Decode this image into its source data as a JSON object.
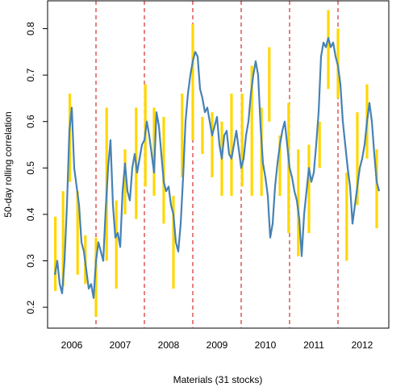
{
  "chart_data": {
    "type": "line",
    "title": "",
    "xlabel": "Materials (31 stocks)",
    "ylabel": "50-day rolling correlation",
    "xlim": [
      2005.5,
      2012.55
    ],
    "ylim": [
      0.155,
      0.86
    ],
    "yticks": [
      0.2,
      0.3,
      0.4,
      0.5,
      0.6,
      0.7,
      0.8
    ],
    "year_labels": [
      {
        "label": "2006",
        "x": 2006.0
      },
      {
        "label": "2007",
        "x": 2007.0
      },
      {
        "label": "2008",
        "x": 2008.0
      },
      {
        "label": "2009",
        "x": 2009.0
      },
      {
        "label": "2010",
        "x": 2010.0
      },
      {
        "label": "2011",
        "x": 2011.0
      },
      {
        "label": "2012",
        "x": 2012.0
      }
    ],
    "year_boundaries": [
      2006.5,
      2007.5,
      2008.5,
      2009.5,
      2010.5,
      2011.5
    ],
    "colors": {
      "line": "#4682b4",
      "segments": "#ffd700",
      "boundaries": "#cc0000"
    },
    "series": [
      {
        "x": [
          2005.65,
          2005.7,
          2005.75,
          2005.8,
          2005.85,
          2005.9,
          2005.95,
          2006.0,
          2006.05,
          2006.1,
          2006.15,
          2006.2,
          2006.25,
          2006.3,
          2006.35,
          2006.4,
          2006.45,
          2006.5,
          2006.55,
          2006.6,
          2006.65,
          2006.7,
          2006.75,
          2006.8,
          2006.85,
          2006.9,
          2006.95,
          2007.0,
          2007.05,
          2007.1,
          2007.15,
          2007.2,
          2007.25,
          2007.3,
          2007.35,
          2007.4,
          2007.45,
          2007.5,
          2007.55,
          2007.6,
          2007.65,
          2007.7,
          2007.75,
          2007.8,
          2007.85,
          2007.9,
          2007.95,
          2008.0,
          2008.05,
          2008.1,
          2008.15,
          2008.2,
          2008.25,
          2008.3,
          2008.35,
          2008.4,
          2008.45,
          2008.5,
          2008.55,
          2008.6,
          2008.65,
          2008.7,
          2008.75,
          2008.8,
          2008.85,
          2008.9,
          2008.95,
          2009.0,
          2009.05,
          2009.1,
          2009.15,
          2009.2,
          2009.25,
          2009.3,
          2009.35,
          2009.4,
          2009.45,
          2009.5,
          2009.55,
          2009.6,
          2009.65,
          2009.7,
          2009.75,
          2009.8,
          2009.85,
          2009.9,
          2009.95,
          2010.0,
          2010.05,
          2010.1,
          2010.15,
          2010.2,
          2010.25,
          2010.3,
          2010.35,
          2010.4,
          2010.45,
          2010.5,
          2010.55,
          2010.6,
          2010.65,
          2010.7,
          2010.75,
          2010.8,
          2010.85,
          2010.9,
          2010.95,
          2011.0,
          2011.05,
          2011.1,
          2011.15,
          2011.2,
          2011.25,
          2011.3,
          2011.35,
          2011.4,
          2011.45,
          2011.5,
          2011.55,
          2011.6,
          2011.65,
          2011.7,
          2011.75,
          2011.8,
          2011.85,
          2011.9,
          2011.95,
          2012.0,
          2012.05,
          2012.1,
          2012.15,
          2012.2,
          2012.25,
          2012.3,
          2012.35
        ],
        "values": [
          0.27,
          0.3,
          0.25,
          0.23,
          0.3,
          0.42,
          0.58,
          0.63,
          0.5,
          0.46,
          0.42,
          0.34,
          0.32,
          0.28,
          0.24,
          0.25,
          0.22,
          0.3,
          0.34,
          0.32,
          0.3,
          0.41,
          0.5,
          0.56,
          0.42,
          0.35,
          0.36,
          0.33,
          0.45,
          0.51,
          0.45,
          0.43,
          0.5,
          0.53,
          0.49,
          0.52,
          0.55,
          0.56,
          0.6,
          0.57,
          0.53,
          0.49,
          0.62,
          0.59,
          0.53,
          0.47,
          0.45,
          0.46,
          0.42,
          0.4,
          0.34,
          0.32,
          0.38,
          0.48,
          0.6,
          0.66,
          0.7,
          0.73,
          0.75,
          0.74,
          0.67,
          0.65,
          0.62,
          0.63,
          0.6,
          0.57,
          0.59,
          0.61,
          0.55,
          0.52,
          0.57,
          0.58,
          0.53,
          0.52,
          0.55,
          0.58,
          0.54,
          0.5,
          0.52,
          0.57,
          0.6,
          0.66,
          0.7,
          0.73,
          0.7,
          0.59,
          0.51,
          0.48,
          0.44,
          0.35,
          0.38,
          0.46,
          0.51,
          0.55,
          0.58,
          0.6,
          0.55,
          0.5,
          0.48,
          0.45,
          0.43,
          0.39,
          0.31,
          0.4,
          0.45,
          0.5,
          0.47,
          0.49,
          0.55,
          0.62,
          0.74,
          0.77,
          0.76,
          0.78,
          0.76,
          0.77,
          0.74,
          0.72,
          0.68,
          0.6,
          0.55,
          0.5,
          0.46,
          0.38,
          0.42,
          0.46,
          0.5,
          0.52,
          0.55,
          0.6,
          0.64,
          0.6,
          0.53,
          0.47,
          0.45
        ]
      }
    ],
    "segments": [
      {
        "x": 2005.66,
        "y": [
          0.235,
          0.395
        ]
      },
      {
        "x": 2005.82,
        "y": [
          0.245,
          0.45
        ]
      },
      {
        "x": 2005.96,
        "y": [
          0.47,
          0.66
        ]
      },
      {
        "x": 2006.12,
        "y": [
          0.27,
          0.45
        ]
      },
      {
        "x": 2006.28,
        "y": [
          0.25,
          0.355
        ]
      },
      {
        "x": 2006.5,
        "y": [
          0.18,
          0.35
        ]
      },
      {
        "x": 2006.72,
        "y": [
          0.3,
          0.63
        ]
      },
      {
        "x": 2006.92,
        "y": [
          0.24,
          0.43
        ]
      },
      {
        "x": 2007.1,
        "y": [
          0.4,
          0.54
        ]
      },
      {
        "x": 2007.33,
        "y": [
          0.39,
          0.63
        ]
      },
      {
        "x": 2007.52,
        "y": [
          0.46,
          0.68
        ]
      },
      {
        "x": 2007.7,
        "y": [
          0.44,
          0.63
        ]
      },
      {
        "x": 2007.9,
        "y": [
          0.38,
          0.61
        ]
      },
      {
        "x": 2008.1,
        "y": [
          0.24,
          0.44
        ]
      },
      {
        "x": 2008.28,
        "y": [
          0.48,
          0.66
        ]
      },
      {
        "x": 2008.5,
        "y": [
          0.56,
          0.81
        ]
      },
      {
        "x": 2008.7,
        "y": [
          0.53,
          0.61
        ]
      },
      {
        "x": 2008.9,
        "y": [
          0.48,
          0.62
        ]
      },
      {
        "x": 2009.1,
        "y": [
          0.44,
          0.6
        ]
      },
      {
        "x": 2009.3,
        "y": [
          0.44,
          0.66
        ]
      },
      {
        "x": 2009.52,
        "y": [
          0.46,
          0.66
        ]
      },
      {
        "x": 2009.72,
        "y": [
          0.44,
          0.72
        ]
      },
      {
        "x": 2009.92,
        "y": [
          0.44,
          0.63
        ]
      },
      {
        "x": 2010.08,
        "y": [
          0.6,
          0.76
        ]
      },
      {
        "x": 2010.3,
        "y": [
          0.44,
          0.57
        ]
      },
      {
        "x": 2010.48,
        "y": [
          0.36,
          0.64
        ]
      },
      {
        "x": 2010.68,
        "y": [
          0.31,
          0.54
        ]
      },
      {
        "x": 2010.9,
        "y": [
          0.36,
          0.55
        ]
      },
      {
        "x": 2011.12,
        "y": [
          0.5,
          0.6
        ]
      },
      {
        "x": 2011.3,
        "y": [
          0.67,
          0.84
        ]
      },
      {
        "x": 2011.5,
        "y": [
          0.65,
          0.8
        ]
      },
      {
        "x": 2011.68,
        "y": [
          0.3,
          0.49
        ]
      },
      {
        "x": 2011.9,
        "y": [
          0.42,
          0.62
        ]
      },
      {
        "x": 2012.1,
        "y": [
          0.52,
          0.68
        ]
      },
      {
        "x": 2012.3,
        "y": [
          0.37,
          0.54
        ]
      }
    ]
  }
}
